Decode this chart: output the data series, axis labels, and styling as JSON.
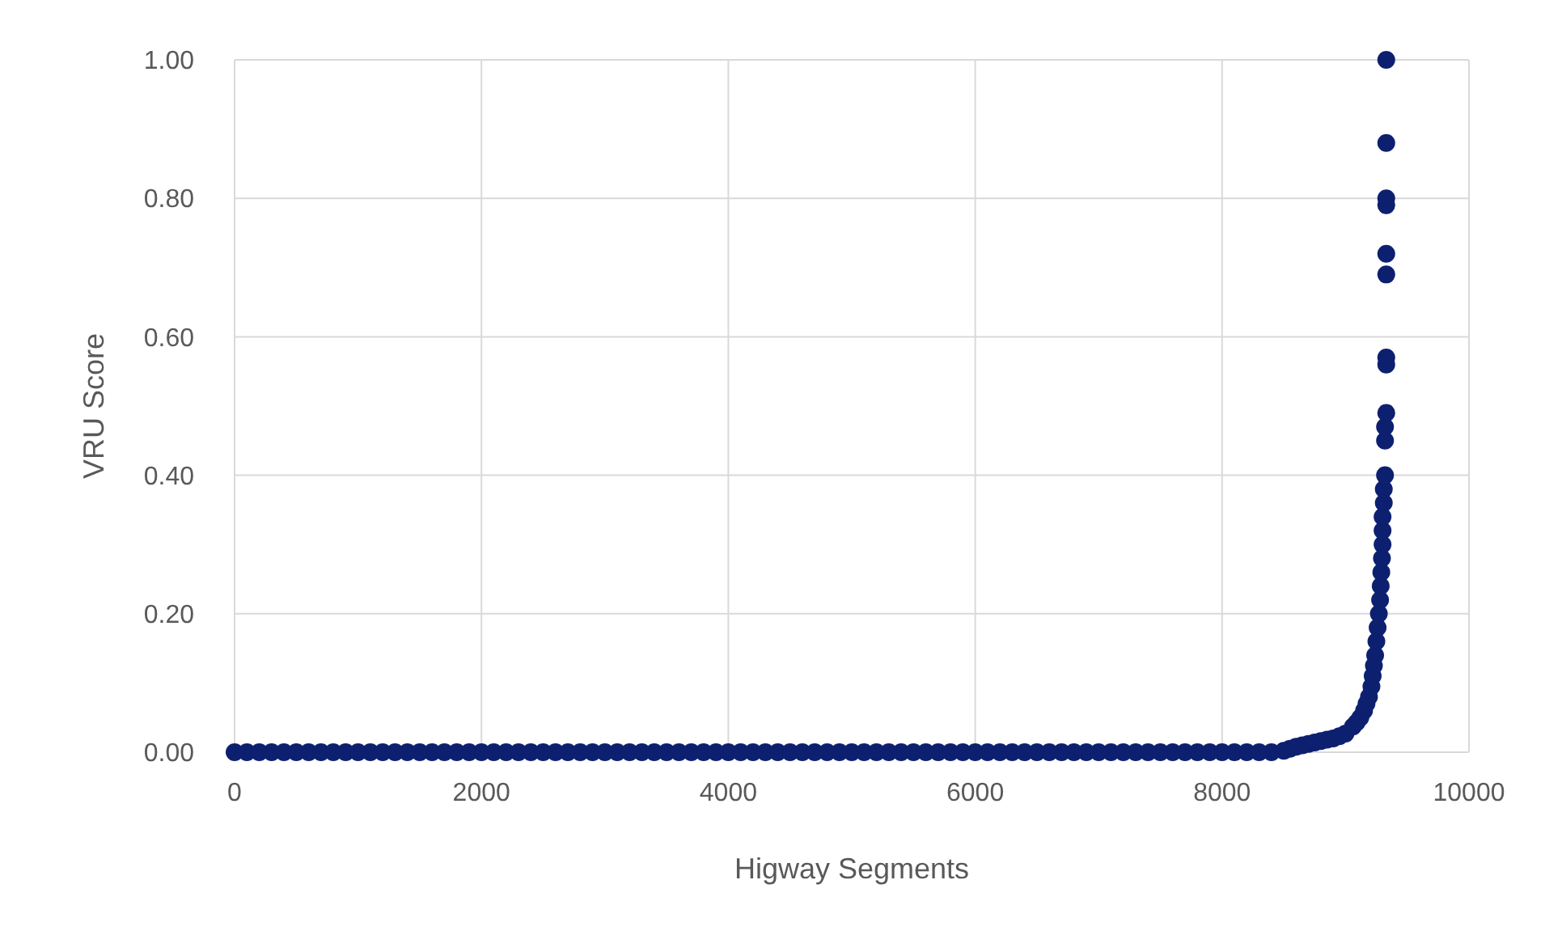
{
  "chart_data": {
    "type": "scatter",
    "xlabel": "Higway Segments",
    "ylabel": "VRU Score",
    "xlim": [
      0,
      10000
    ],
    "xticks": [
      0,
      2000,
      4000,
      6000,
      8000,
      10000
    ],
    "ylim": [
      0,
      1
    ],
    "yticks": [
      {
        "value": 0,
        "label": "0.00"
      },
      {
        "value": 0.2,
        "label": "0.20"
      },
      {
        "value": 0.4,
        "label": "0.40"
      },
      {
        "value": 0.6,
        "label": "0.60"
      },
      {
        "value": 0.8,
        "label": "0.80"
      },
      {
        "value": 1,
        "label": "1.00"
      }
    ],
    "grid": true,
    "marker": "circle",
    "series": [
      {
        "color": "#0d2070",
        "x": [
          0,
          100,
          200,
          300,
          400,
          500,
          600,
          700,
          800,
          900,
          1000,
          1100,
          1200,
          1300,
          1400,
          1500,
          1600,
          1700,
          1800,
          1900,
          2000,
          2100,
          2200,
          2300,
          2400,
          2500,
          2600,
          2700,
          2800,
          2900,
          3000,
          3100,
          3200,
          3300,
          3400,
          3500,
          3600,
          3700,
          3800,
          3900,
          4000,
          4100,
          4200,
          4300,
          4400,
          4500,
          4600,
          4700,
          4800,
          4900,
          5000,
          5100,
          5200,
          5300,
          5400,
          5500,
          5600,
          5700,
          5800,
          5900,
          6000,
          6100,
          6200,
          6300,
          6400,
          6500,
          6600,
          6700,
          6800,
          6900,
          7000,
          7100,
          7200,
          7300,
          7400,
          7500,
          7600,
          7700,
          7800,
          7900,
          8000,
          8100,
          8200,
          8300,
          8400,
          8500,
          8550,
          8600,
          8650,
          8700,
          8750,
          8800,
          8850,
          8900,
          8950,
          9000,
          9060,
          9090,
          9120,
          9150,
          9170,
          9190,
          9210,
          9220,
          9230,
          9240,
          9250,
          9260,
          9270,
          9280,
          9285,
          9290,
          9295,
          9300,
          9300,
          9300,
          9310,
          9310,
          9320,
          9320,
          9320,
          9330,
          9330,
          9330,
          9330,
          9330,
          9330,
          9330,
          9330,
          9330
        ],
        "values": [
          0,
          0,
          0,
          0,
          0,
          0,
          0,
          0,
          0,
          0,
          0,
          0,
          0,
          0,
          0,
          0,
          0,
          0,
          0,
          0,
          0,
          0,
          0,
          0,
          0,
          0,
          0,
          0,
          0,
          0,
          0,
          0,
          0,
          0,
          0,
          0,
          0,
          0,
          0,
          0,
          0,
          0,
          0,
          0,
          0,
          0,
          0,
          0,
          0,
          0,
          0,
          0,
          0,
          0,
          0,
          0,
          0,
          0,
          0,
          0,
          0,
          0,
          0,
          0,
          0,
          0,
          0,
          0,
          0,
          0,
          0,
          0,
          0,
          0,
          0,
          0,
          0,
          0,
          0,
          0,
          0,
          0,
          0,
          0,
          0,
          0.002,
          0.005,
          0.008,
          0.01,
          0.012,
          0.014,
          0.016,
          0.018,
          0.02,
          0.023,
          0.027,
          0.037,
          0.043,
          0.05,
          0.06,
          0.07,
          0.08,
          0.095,
          0.11,
          0.125,
          0.14,
          0.16,
          0.18,
          0.2,
          0.22,
          0.24,
          0.26,
          0.28,
          0.3,
          0.32,
          0.34,
          0.36,
          0.38,
          0.4,
          0.45,
          0.47,
          0.49,
          0.56,
          0.57,
          0.69,
          0.72,
          0.79,
          0.8,
          0.88,
          1.0
        ]
      }
    ]
  }
}
